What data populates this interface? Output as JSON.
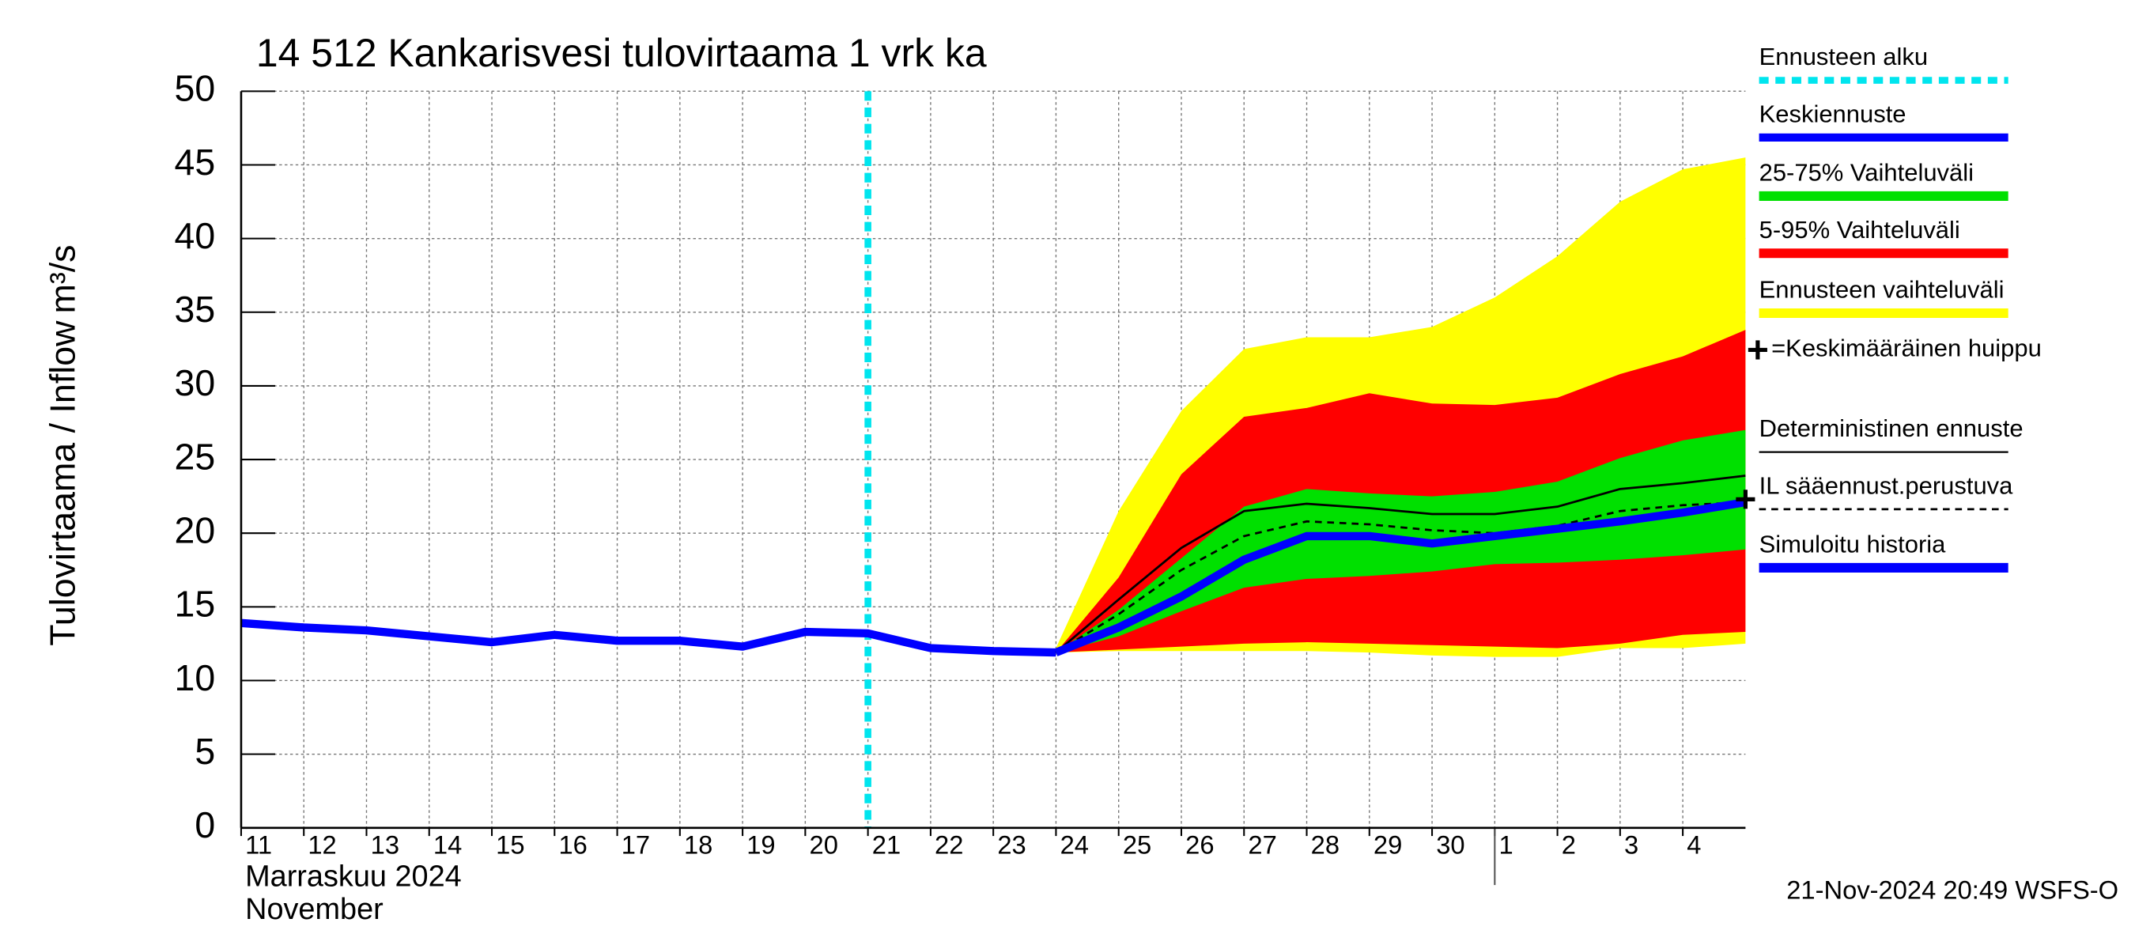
{
  "chart_data": {
    "type": "line",
    "title": "14 512 Kankarisvesi tulovirtaama 1 vrk ka",
    "ylabel": "Tulovirtaama / Inflow",
    "yunit": "m³/s",
    "month_label": "Marraskuu 2024",
    "month_label_en": "November",
    "footer": "21-Nov-2024 20:49 WSFS-O",
    "xlim": [
      "2024-11-11",
      "2024-12-05"
    ],
    "xticks": [
      {
        "value": "2024-11-11",
        "label": "11"
      },
      {
        "value": "2024-11-12",
        "label": "12"
      },
      {
        "value": "2024-11-13",
        "label": "13"
      },
      {
        "value": "2024-11-14",
        "label": "14"
      },
      {
        "value": "2024-11-15",
        "label": "15"
      },
      {
        "value": "2024-11-16",
        "label": "16"
      },
      {
        "value": "2024-11-17",
        "label": "17"
      },
      {
        "value": "2024-11-18",
        "label": "18"
      },
      {
        "value": "2024-11-19",
        "label": "19"
      },
      {
        "value": "2024-11-20",
        "label": "20"
      },
      {
        "value": "2024-11-21",
        "label": "21"
      },
      {
        "value": "2024-11-22",
        "label": "22"
      },
      {
        "value": "2024-11-23",
        "label": "23"
      },
      {
        "value": "2024-11-24",
        "label": "24"
      },
      {
        "value": "2024-11-25",
        "label": "25"
      },
      {
        "value": "2024-11-26",
        "label": "26"
      },
      {
        "value": "2024-11-27",
        "label": "27"
      },
      {
        "value": "2024-11-28",
        "label": "28"
      },
      {
        "value": "2024-11-29",
        "label": "29"
      },
      {
        "value": "2024-11-30",
        "label": "30"
      },
      {
        "value": "2024-12-01",
        "label": "1"
      },
      {
        "value": "2024-12-02",
        "label": "2"
      },
      {
        "value": "2024-12-03",
        "label": "3"
      },
      {
        "value": "2024-12-04",
        "label": "4"
      }
    ],
    "ylim": [
      0,
      50
    ],
    "yticks": [
      0,
      5,
      10,
      15,
      20,
      25,
      30,
      35,
      40,
      45,
      50
    ],
    "grid": true,
    "forecast_start": {
      "name": "Ennusteen alku",
      "x": "2024-11-21",
      "color": "#00e5ee"
    },
    "bands": [
      {
        "name": "Ennusteen vaihteluväli",
        "color": "#ffff00",
        "x": [
          "2024-11-24",
          "2024-11-25",
          "2024-11-26",
          "2024-11-27",
          "2024-11-28",
          "2024-11-29",
          "2024-11-30",
          "2024-12-01",
          "2024-12-02",
          "2024-12-03",
          "2024-12-04",
          "2024-12-05"
        ],
        "lower": [
          11.9,
          12.0,
          12.0,
          12.0,
          12.0,
          11.9,
          11.7,
          11.6,
          11.6,
          12.2,
          12.2,
          12.5
        ],
        "upper": [
          12.2,
          21.5,
          28.3,
          32.5,
          33.3,
          33.3,
          34.0,
          36.0,
          38.8,
          42.5,
          44.7,
          45.5
        ]
      },
      {
        "name": "5-95% Vaihteluväli",
        "color": "#ff0000",
        "x": [
          "2024-11-24",
          "2024-11-25",
          "2024-11-26",
          "2024-11-27",
          "2024-11-28",
          "2024-11-29",
          "2024-11-30",
          "2024-12-01",
          "2024-12-02",
          "2024-12-03",
          "2024-12-04",
          "2024-12-05"
        ],
        "lower": [
          11.9,
          12.1,
          12.3,
          12.5,
          12.6,
          12.5,
          12.4,
          12.3,
          12.2,
          12.5,
          13.1,
          13.3
        ],
        "upper": [
          11.9,
          17.0,
          24.0,
          27.9,
          28.5,
          29.5,
          28.8,
          28.7,
          29.2,
          30.8,
          32.0,
          33.8
        ]
      },
      {
        "name": "25-75% Vaihteluväli",
        "color": "#00e000",
        "x": [
          "2024-11-24",
          "2024-11-25",
          "2024-11-26",
          "2024-11-27",
          "2024-11-28",
          "2024-11-29",
          "2024-11-30",
          "2024-12-01",
          "2024-12-02",
          "2024-12-03",
          "2024-12-04",
          "2024-12-05"
        ],
        "lower": [
          11.9,
          13.0,
          14.7,
          16.3,
          16.9,
          17.1,
          17.4,
          17.9,
          18.0,
          18.2,
          18.5,
          18.9
        ],
        "upper": [
          11.9,
          14.8,
          18.3,
          21.8,
          23.0,
          22.7,
          22.5,
          22.8,
          23.5,
          25.1,
          26.3,
          27.0
        ]
      }
    ],
    "series": [
      {
        "name": "Keskiennuste",
        "color": "#0000ff",
        "style": "thick",
        "x": [
          "2024-11-24",
          "2024-11-25",
          "2024-11-26",
          "2024-11-27",
          "2024-11-28",
          "2024-11-29",
          "2024-11-30",
          "2024-12-01",
          "2024-12-02",
          "2024-12-03",
          "2024-12-04",
          "2024-12-05"
        ],
        "values": [
          11.9,
          13.6,
          15.7,
          18.2,
          19.8,
          19.8,
          19.3,
          19.8,
          20.3,
          20.8,
          21.4,
          22.1
        ]
      },
      {
        "name": "Deterministinen ennuste",
        "color": "#000000",
        "style": "thin",
        "x": [
          "2024-11-24",
          "2024-11-25",
          "2024-11-26",
          "2024-11-27",
          "2024-11-28",
          "2024-11-29",
          "2024-11-30",
          "2024-12-01",
          "2024-12-02",
          "2024-12-03",
          "2024-12-04",
          "2024-12-05"
        ],
        "values": [
          11.9,
          15.5,
          19.0,
          21.5,
          22.0,
          21.7,
          21.3,
          21.3,
          21.8,
          23.0,
          23.4,
          23.9
        ]
      },
      {
        "name": "IL sääennust.perustuva",
        "color": "#000000",
        "style": "dashed",
        "x": [
          "2024-11-24",
          "2024-11-25",
          "2024-11-26",
          "2024-11-27",
          "2024-11-28",
          "2024-11-29",
          "2024-11-30",
          "2024-12-01",
          "2024-12-02",
          "2024-12-03",
          "2024-12-04",
          "2024-12-05"
        ],
        "values": [
          11.9,
          14.5,
          17.5,
          19.8,
          20.8,
          20.6,
          20.2,
          20.0,
          20.5,
          21.5,
          21.9,
          22.1
        ]
      },
      {
        "name": "Simuloitu historia",
        "color": "#0000ff",
        "style": "thick",
        "x": [
          "2024-11-11",
          "2024-11-12",
          "2024-11-13",
          "2024-11-14",
          "2024-11-15",
          "2024-11-16",
          "2024-11-17",
          "2024-11-18",
          "2024-11-19",
          "2024-11-20",
          "2024-11-21",
          "2024-11-22",
          "2024-11-23",
          "2024-11-24"
        ],
        "values": [
          13.9,
          13.6,
          13.4,
          13.0,
          12.6,
          13.1,
          12.7,
          12.7,
          12.3,
          13.3,
          13.2,
          12.2,
          12.0,
          11.9
        ]
      }
    ],
    "peak": {
      "name": "=Keskimääräinen huippu",
      "x": "2024-12-05",
      "value": 22.3
    }
  }
}
